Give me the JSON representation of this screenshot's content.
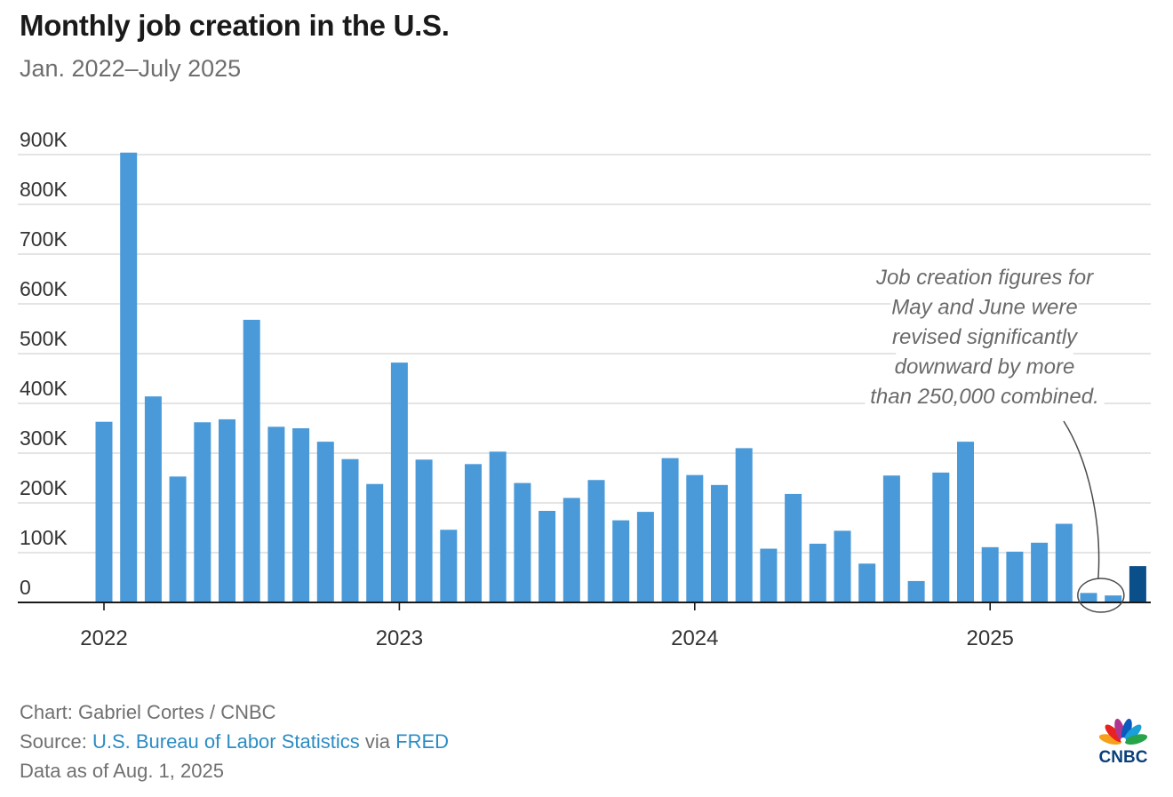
{
  "header": {
    "title": "Monthly job creation in the U.S.",
    "subtitle": "Jan. 2022–July 2025"
  },
  "chart_data": {
    "type": "bar",
    "categories": [
      "Jan 2022",
      "Feb 2022",
      "Mar 2022",
      "Apr 2022",
      "May 2022",
      "Jun 2022",
      "Jul 2022",
      "Aug 2022",
      "Sep 2022",
      "Oct 2022",
      "Nov 2022",
      "Dec 2022",
      "Jan 2023",
      "Feb 2023",
      "Mar 2023",
      "Apr 2023",
      "May 2023",
      "Jun 2023",
      "Jul 2023",
      "Aug 2023",
      "Sep 2023",
      "Oct 2023",
      "Nov 2023",
      "Dec 2023",
      "Jan 2024",
      "Feb 2024",
      "Mar 2024",
      "Apr 2024",
      "May 2024",
      "Jun 2024",
      "Jul 2024",
      "Aug 2024",
      "Sep 2024",
      "Oct 2024",
      "Nov 2024",
      "Dec 2024",
      "Jan 2025",
      "Feb 2025",
      "Mar 2025",
      "Apr 2025",
      "May 2025",
      "Jun 2025",
      "Jul 2025"
    ],
    "values": [
      363000,
      904000,
      414000,
      253000,
      362000,
      368000,
      568000,
      353000,
      350000,
      323000,
      288000,
      238000,
      482000,
      287000,
      146000,
      278000,
      303000,
      240000,
      184000,
      210000,
      246000,
      165000,
      182000,
      290000,
      256000,
      236000,
      310000,
      108000,
      218000,
      118000,
      144000,
      78000,
      255000,
      43000,
      261000,
      323000,
      111000,
      102000,
      120000,
      158000,
      19000,
      14000,
      73000
    ],
    "ylim": [
      0,
      900000
    ],
    "yticks": [
      0,
      100000,
      200000,
      300000,
      400000,
      500000,
      600000,
      700000,
      800000,
      900000
    ],
    "ytick_labels": [
      "0",
      "100K",
      "200K",
      "300K",
      "400K",
      "500K",
      "600K",
      "700K",
      "800K",
      "900K"
    ],
    "xtick_labels": [
      {
        "label": "2022",
        "category": "Jan 2022"
      },
      {
        "label": "2023",
        "category": "Jan 2023"
      },
      {
        "label": "2024",
        "category": "Jan 2024"
      },
      {
        "label": "2025",
        "category": "Jan 2025"
      }
    ],
    "bar_color": "#4a9ad9",
    "highlight_color": "#0b4f8a",
    "highlight_category": "Jul 2025",
    "grid": true,
    "annotation": {
      "lines": [
        "Job creation figures for",
        "May and June were",
        "revised significantly",
        "downward by more",
        "than 250,000 combined."
      ],
      "circled_categories": [
        "May 2025",
        "Jun 2025"
      ]
    }
  },
  "footer": {
    "credit": "Chart: Gabriel Cortes / CNBC",
    "source_label": "Source: ",
    "source_link": "U.S. Bureau of Labor Statistics",
    "source_via": " via ",
    "source_link2": "FRED",
    "data_date": "Data as of Aug. 1, 2025"
  },
  "logo": {
    "text": "CNBC",
    "feather_colors": [
      "#f6a01a",
      "#e8231f",
      "#b0358f",
      "#0a5bbf",
      "#1a9fd8",
      "#27a34a"
    ]
  }
}
